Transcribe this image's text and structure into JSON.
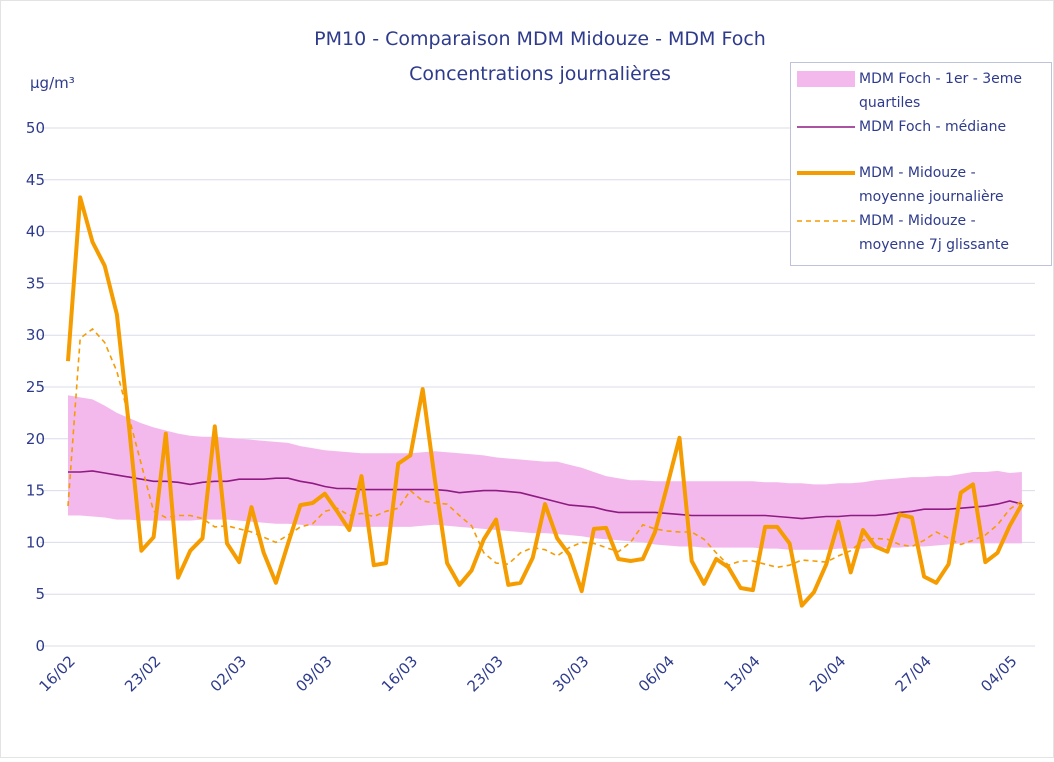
{
  "chart_data": {
    "type": "line",
    "title": "PM10 - Comparaison MDM Midouze - MDM Foch",
    "subtitle": "Concentrations journalières",
    "y_label": "µg/m³",
    "categories": [
      "16/02",
      null,
      null,
      null,
      null,
      null,
      null,
      "23/02",
      null,
      null,
      null,
      null,
      null,
      null,
      "02/03",
      null,
      null,
      null,
      null,
      null,
      null,
      "09/03",
      null,
      null,
      null,
      null,
      null,
      null,
      "16/03",
      null,
      null,
      null,
      null,
      null,
      null,
      "23/03",
      null,
      null,
      null,
      null,
      null,
      null,
      "30/03",
      null,
      null,
      null,
      null,
      null,
      null,
      "06/04",
      null,
      null,
      null,
      null,
      null,
      null,
      "13/04",
      null,
      null,
      null,
      null,
      null,
      null,
      "20/04",
      null,
      null,
      null,
      null,
      null,
      null,
      "27/04",
      null,
      null,
      null,
      null,
      null,
      null,
      "04/05",
      null
    ],
    "ylim": [
      0,
      53
    ],
    "yticks": [
      0,
      5,
      10,
      15,
      20,
      25,
      30,
      35,
      40,
      45,
      50
    ],
    "grid": true,
    "legend": "upper right",
    "series": [
      {
        "name": "MDM Foch - 1er - 3eme quartiles",
        "style": "band",
        "color": "#f4b9ec",
        "upper": [
          24.2,
          24,
          23.8,
          23.2,
          22.5,
          22,
          21.5,
          21.1,
          20.8,
          20.5,
          20.3,
          20.2,
          20.2,
          20.1,
          20,
          19.9,
          19.8,
          19.7,
          19.6,
          19.3,
          19.1,
          18.9,
          18.8,
          18.7,
          18.6,
          18.6,
          18.6,
          18.6,
          18.6,
          18.7,
          18.8,
          18.7,
          18.6,
          18.5,
          18.4,
          18.2,
          18.1,
          18,
          17.9,
          17.8,
          17.8,
          17.5,
          17.2,
          16.8,
          16.4,
          16.2,
          16,
          16,
          15.9,
          15.9,
          15.9,
          15.9,
          15.9,
          15.9,
          15.9,
          15.9,
          15.9,
          15.8,
          15.8,
          15.7,
          15.7,
          15.6,
          15.6,
          15.7,
          15.7,
          15.8,
          16,
          16.1,
          16.2,
          16.3,
          16.3,
          16.4,
          16.4,
          16.6,
          16.8,
          16.8,
          16.9,
          16.7,
          16.8
        ],
        "lower": [
          12.6,
          12.6,
          12.5,
          12.4,
          12.2,
          12.2,
          12.1,
          12.1,
          12.1,
          12.1,
          12.1,
          12.2,
          12.2,
          12.2,
          12.1,
          12,
          11.9,
          11.8,
          11.8,
          11.7,
          11.6,
          11.6,
          11.6,
          11.5,
          11.5,
          11.5,
          11.5,
          11.5,
          11.5,
          11.6,
          11.7,
          11.6,
          11.5,
          11.4,
          11.3,
          11.2,
          11.1,
          11,
          10.9,
          10.9,
          10.8,
          10.7,
          10.6,
          10.4,
          10.3,
          10.2,
          10.1,
          10,
          9.8,
          9.7,
          9.6,
          9.6,
          9.5,
          9.5,
          9.5,
          9.5,
          9.5,
          9.4,
          9.4,
          9.3,
          9.3,
          9.3,
          9.3,
          9.4,
          9.4,
          9.4,
          9.5,
          9.5,
          9.5,
          9.6,
          9.6,
          9.7,
          9.8,
          9.9,
          9.9,
          9.9,
          9.9,
          9.9,
          9.9
        ]
      },
      {
        "name": "MDM Foch - médiane",
        "style": "line",
        "color": "#8e1b82",
        "values": [
          16.8,
          16.8,
          16.9,
          16.7,
          16.5,
          16.3,
          16.1,
          15.9,
          15.9,
          15.8,
          15.6,
          15.8,
          15.9,
          15.9,
          16.1,
          16.1,
          16.1,
          16.2,
          16.2,
          15.9,
          15.7,
          15.4,
          15.2,
          15.2,
          15.1,
          15.1,
          15.1,
          15.1,
          15.1,
          15.1,
          15.1,
          15,
          14.8,
          14.9,
          15,
          15,
          14.9,
          14.8,
          14.5,
          14.2,
          13.9,
          13.6,
          13.5,
          13.4,
          13.1,
          12.9,
          12.9,
          12.9,
          12.9,
          12.8,
          12.7,
          12.6,
          12.6,
          12.6,
          12.6,
          12.6,
          12.6,
          12.6,
          12.5,
          12.4,
          12.3,
          12.4,
          12.5,
          12.5,
          12.6,
          12.6,
          12.6,
          12.7,
          12.9,
          13,
          13.2,
          13.2,
          13.2,
          13.3,
          13.4,
          13.5,
          13.7,
          14,
          13.7
        ]
      },
      {
        "name": "MDM - Midouze - moyenne journalière",
        "style": "thick",
        "color": "#f59c00",
        "values": [
          27.5,
          43.3,
          39,
          36.7,
          32,
          21,
          9.2,
          10.5,
          20.5,
          6.6,
          9.2,
          10.4,
          21.2,
          9.9,
          8.1,
          13.4,
          9,
          6.1,
          9.9,
          13.6,
          13.8,
          14.7,
          13,
          11.2,
          16.4,
          7.8,
          8,
          17.6,
          18.4,
          24.8,
          16,
          8,
          5.9,
          7.3,
          10.3,
          12.2,
          5.9,
          6.1,
          8.5,
          13.7,
          10.4,
          8.8,
          5.3,
          11.3,
          11.4,
          8.4,
          8.2,
          8.4,
          11,
          15.5,
          20.1,
          8.2,
          6,
          8.4,
          7.6,
          5.6,
          5.4,
          11.5,
          11.5,
          9.9,
          3.9,
          5.2,
          7.9,
          12,
          7.1,
          11.2,
          9.6,
          9.1,
          12.7,
          12.4,
          6.7,
          6.1,
          7.9,
          14.8,
          15.6,
          8.1,
          9,
          11.6,
          13.7
        ]
      },
      {
        "name": "MDM - Midouze - moyenne 7j glissante",
        "style": "dashed",
        "color": "#f59c00",
        "values": [
          13.5,
          29.7,
          30.6,
          29.3,
          26.5,
          22,
          17.5,
          13,
          12.4,
          12.6,
          12.6,
          12.3,
          11.5,
          11.6,
          11.3,
          11,
          10.5,
          10,
          10.7,
          11.5,
          11.8,
          13,
          13.3,
          12.6,
          12.8,
          12.5,
          13,
          13.3,
          15,
          14,
          13.8,
          13.7,
          12.6,
          11.6,
          9,
          8,
          7.9,
          9,
          9.5,
          9.3,
          8.7,
          9.5,
          10,
          9.9,
          9.5,
          9.1,
          10,
          11.7,
          11.3,
          11.1,
          11,
          11,
          10.3,
          9,
          7.8,
          8.2,
          8.2,
          7.9,
          7.6,
          7.8,
          8.3,
          8.2,
          8.1,
          8.7,
          9.2,
          10.2,
          10.4,
          10.3,
          9.8,
          9.6,
          10.2,
          11,
          10.4,
          9.8,
          10.2,
          10.7,
          11.7,
          13.2,
          14
        ]
      }
    ]
  }
}
